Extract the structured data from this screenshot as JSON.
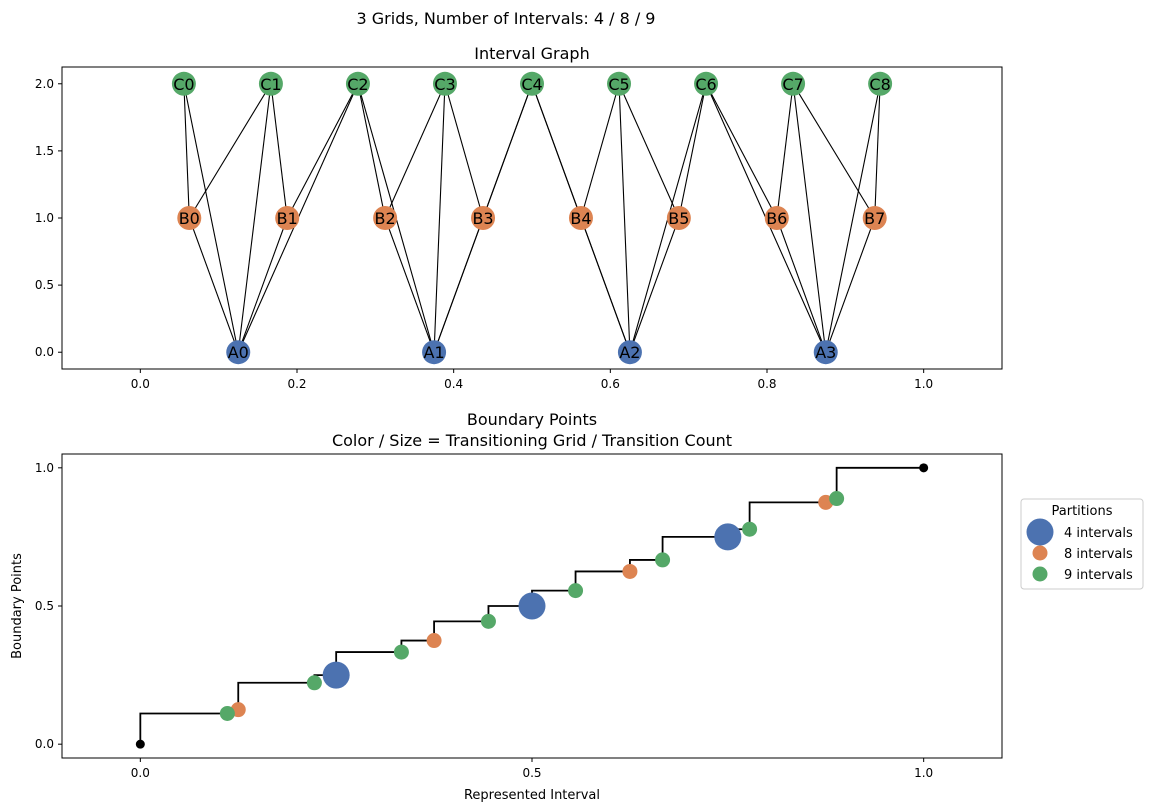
{
  "suptitle": "3 Grids, Number of Intervals: 4 / 8 / 9",
  "chart_data": [
    {
      "type": "network",
      "title": "Interval Graph",
      "xlim": [
        -0.1,
        1.1
      ],
      "ylim": [
        -0.125,
        2.125
      ],
      "xticks": [
        0.0,
        0.2,
        0.4,
        0.6,
        0.8,
        1.0
      ],
      "xtick_labels": [
        "0.0",
        "0.2",
        "0.4",
        "0.6",
        "0.8",
        "1.0"
      ],
      "yticks": [
        0.0,
        0.5,
        1.0,
        1.5,
        2.0
      ],
      "ytick_labels": [
        "0.0",
        "0.5",
        "1.0",
        "1.5",
        "2.0"
      ],
      "grid": false,
      "node_groups": [
        {
          "prefix": "A",
          "color": "#4c72b0",
          "y": 0,
          "count": 4
        },
        {
          "prefix": "B",
          "color": "#dd8452",
          "y": 1,
          "count": 8
        },
        {
          "prefix": "C",
          "color": "#55a868",
          "y": 2,
          "count": 9
        }
      ],
      "nodes": [
        {
          "id": "A0",
          "x": 0.125,
          "y": 0,
          "group": 0
        },
        {
          "id": "A1",
          "x": 0.375,
          "y": 0,
          "group": 0
        },
        {
          "id": "A2",
          "x": 0.625,
          "y": 0,
          "group": 0
        },
        {
          "id": "A3",
          "x": 0.875,
          "y": 0,
          "group": 0
        },
        {
          "id": "B0",
          "x": 0.0625,
          "y": 1,
          "group": 1
        },
        {
          "id": "B1",
          "x": 0.1875,
          "y": 1,
          "group": 1
        },
        {
          "id": "B2",
          "x": 0.3125,
          "y": 1,
          "group": 1
        },
        {
          "id": "B3",
          "x": 0.4375,
          "y": 1,
          "group": 1
        },
        {
          "id": "B4",
          "x": 0.5625,
          "y": 1,
          "group": 1
        },
        {
          "id": "B5",
          "x": 0.6875,
          "y": 1,
          "group": 1
        },
        {
          "id": "B6",
          "x": 0.8125,
          "y": 1,
          "group": 1
        },
        {
          "id": "B7",
          "x": 0.9375,
          "y": 1,
          "group": 1
        },
        {
          "id": "C0",
          "x": 0.0556,
          "y": 2,
          "group": 2
        },
        {
          "id": "C1",
          "x": 0.1667,
          "y": 2,
          "group": 2
        },
        {
          "id": "C2",
          "x": 0.2778,
          "y": 2,
          "group": 2
        },
        {
          "id": "C3",
          "x": 0.3889,
          "y": 2,
          "group": 2
        },
        {
          "id": "C4",
          "x": 0.5,
          "y": 2,
          "group": 2
        },
        {
          "id": "C5",
          "x": 0.6111,
          "y": 2,
          "group": 2
        },
        {
          "id": "C6",
          "x": 0.7222,
          "y": 2,
          "group": 2
        },
        {
          "id": "C7",
          "x": 0.8333,
          "y": 2,
          "group": 2
        },
        {
          "id": "C8",
          "x": 0.9444,
          "y": 2,
          "group": 2
        }
      ],
      "edges": [
        [
          "A0",
          "B0"
        ],
        [
          "A0",
          "B1"
        ],
        [
          "A0",
          "C0"
        ],
        [
          "A0",
          "C1"
        ],
        [
          "A0",
          "C2"
        ],
        [
          "A1",
          "B2"
        ],
        [
          "A1",
          "B3"
        ],
        [
          "A1",
          "C2"
        ],
        [
          "A1",
          "C3"
        ],
        [
          "A1",
          "C4"
        ],
        [
          "A2",
          "B4"
        ],
        [
          "A2",
          "B5"
        ],
        [
          "A2",
          "C4"
        ],
        [
          "A2",
          "C5"
        ],
        [
          "A2",
          "C6"
        ],
        [
          "A3",
          "B6"
        ],
        [
          "A3",
          "B7"
        ],
        [
          "A3",
          "C6"
        ],
        [
          "A3",
          "C7"
        ],
        [
          "A3",
          "C8"
        ],
        [
          "B0",
          "C0"
        ],
        [
          "B0",
          "C1"
        ],
        [
          "B1",
          "C1"
        ],
        [
          "B1",
          "C2"
        ],
        [
          "B2",
          "C2"
        ],
        [
          "B2",
          "C3"
        ],
        [
          "B3",
          "C3"
        ],
        [
          "B3",
          "C4"
        ],
        [
          "B4",
          "C4"
        ],
        [
          "B4",
          "C5"
        ],
        [
          "B5",
          "C5"
        ],
        [
          "B5",
          "C6"
        ],
        [
          "B6",
          "C6"
        ],
        [
          "B6",
          "C7"
        ],
        [
          "B7",
          "C7"
        ],
        [
          "B7",
          "C8"
        ]
      ]
    },
    {
      "type": "scatter",
      "title": "Boundary Points\nColor / Size = Transitioning Grid / Transition Count",
      "xlabel": "Represented Interval",
      "ylabel": "Boundary Points",
      "xlim": [
        -0.1,
        1.1
      ],
      "ylim": [
        -0.05,
        1.05
      ],
      "xticks": [
        0.0,
        0.5,
        1.0
      ],
      "xtick_labels": [
        "0.0",
        "0.5",
        "1.0"
      ],
      "yticks": [
        0.0,
        0.5,
        1.0
      ],
      "ytick_labels": [
        "0.0",
        "0.5",
        "1.0"
      ],
      "grid": false,
      "legend": {
        "title": "Partitions",
        "placement": "outside-right",
        "entries": [
          {
            "label": "4 intervals",
            "color": "#4c72b0",
            "size": 3
          },
          {
            "label": "8 intervals",
            "color": "#dd8452",
            "size": 1
          },
          {
            "label": "9 intervals",
            "color": "#55a868",
            "size": 1
          }
        ]
      },
      "step_line": {
        "color": "#000000",
        "breakpoints": [
          0.0,
          0.1111,
          0.125,
          0.2222,
          0.25,
          0.3333,
          0.375,
          0.4444,
          0.5,
          0.5556,
          0.625,
          0.6667,
          0.75,
          0.7778,
          0.875,
          0.8889,
          1.0
        ]
      },
      "endpoints": [
        {
          "x": 0.0,
          "y": 0.0,
          "color": "#000000"
        },
        {
          "x": 1.0,
          "y": 1.0,
          "color": "#000000"
        }
      ],
      "series": [
        {
          "name": "4 intervals",
          "color": "#4c72b0",
          "size": 3,
          "x": [
            0.25,
            0.5,
            0.75
          ],
          "y": [
            0.25,
            0.5,
            0.75
          ]
        },
        {
          "name": "8 intervals",
          "color": "#dd8452",
          "size": 1,
          "x": [
            0.125,
            0.375,
            0.625,
            0.875
          ],
          "y": [
            0.125,
            0.375,
            0.625,
            0.875
          ]
        },
        {
          "name": "9 intervals",
          "color": "#55a868",
          "size": 1,
          "x": [
            0.1111,
            0.2222,
            0.3333,
            0.4444,
            0.5556,
            0.6667,
            0.7778,
            0.8889
          ],
          "y": [
            0.1111,
            0.2222,
            0.3333,
            0.4444,
            0.5556,
            0.6667,
            0.7778,
            0.8889
          ]
        }
      ]
    }
  ]
}
